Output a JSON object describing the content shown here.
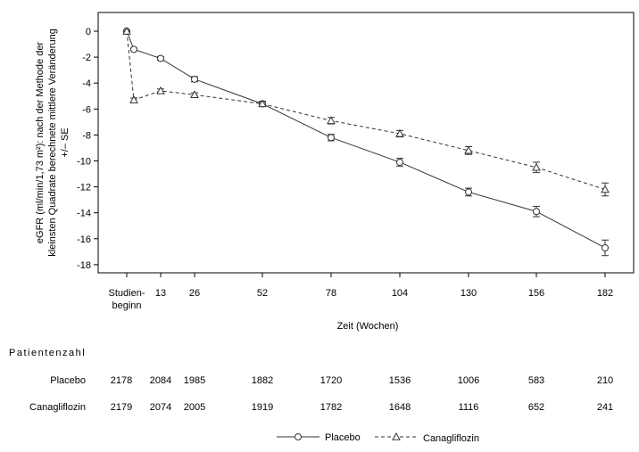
{
  "chart_data": {
    "type": "line",
    "ylabel_lines": [
      "eGFR (ml/min/1,73 m²): nach der Methode der",
      "kleinsten Quadrate berechnete mittlere Veränderung",
      "+/– SE"
    ],
    "xlabel": "Zeit (Wochen)",
    "ylim": [
      -18.5,
      1.5
    ],
    "yticks": [
      0,
      -2,
      -4,
      -6,
      -8,
      -10,
      -12,
      -14,
      -16,
      -18
    ],
    "xticks": [
      {
        "week": 0,
        "label_lines": [
          "Studien-",
          "beginn"
        ]
      },
      {
        "week": 13,
        "label_lines": [
          "13"
        ]
      },
      {
        "week": 26,
        "label_lines": [
          "26"
        ]
      },
      {
        "week": 52,
        "label_lines": [
          "52"
        ]
      },
      {
        "week": 78,
        "label_lines": [
          "78"
        ]
      },
      {
        "week": 104,
        "label_lines": [
          "104"
        ]
      },
      {
        "week": 130,
        "label_lines": [
          "130"
        ]
      },
      {
        "week": 156,
        "label_lines": [
          "156"
        ]
      },
      {
        "week": 182,
        "label_lines": [
          "182"
        ]
      }
    ],
    "series": [
      {
        "name": "Placebo",
        "marker": "circle",
        "line": "solid",
        "points": [
          {
            "x": 0,
            "y": 0.0,
            "se": 0.05
          },
          {
            "x": 3,
            "y": -1.4,
            "se": 0.1
          },
          {
            "x": 13,
            "y": -2.1,
            "se": 0.15
          },
          {
            "x": 26,
            "y": -3.7,
            "se": 0.2
          },
          {
            "x": 52,
            "y": -5.6,
            "se": 0.2
          },
          {
            "x": 78,
            "y": -8.2,
            "se": 0.25
          },
          {
            "x": 104,
            "y": -10.1,
            "se": 0.3
          },
          {
            "x": 130,
            "y": -12.4,
            "se": 0.3
          },
          {
            "x": 156,
            "y": -13.9,
            "se": 0.4
          },
          {
            "x": 182,
            "y": -16.7,
            "se": 0.6
          }
        ]
      },
      {
        "name": "Canagliflozin",
        "marker": "triangle",
        "line": "dashed",
        "points": [
          {
            "x": 0,
            "y": 0.0,
            "se": 0.05
          },
          {
            "x": 3,
            "y": -5.3,
            "se": 0.15
          },
          {
            "x": 13,
            "y": -4.6,
            "se": 0.15
          },
          {
            "x": 26,
            "y": -4.9,
            "se": 0.15
          },
          {
            "x": 52,
            "y": -5.6,
            "se": 0.2
          },
          {
            "x": 78,
            "y": -6.9,
            "se": 0.25
          },
          {
            "x": 104,
            "y": -7.9,
            "se": 0.25
          },
          {
            "x": 130,
            "y": -9.2,
            "se": 0.3
          },
          {
            "x": 156,
            "y": -10.5,
            "se": 0.4
          },
          {
            "x": 182,
            "y": -12.2,
            "se": 0.5
          }
        ]
      }
    ],
    "legend_position": "bottom"
  },
  "patient_counts": {
    "title": "Patientenzahl",
    "rows": [
      {
        "label": "Placebo",
        "counts": [
          "2178",
          "2084",
          "1985",
          "1882",
          "1720",
          "1536",
          "1006",
          "583",
          "210"
        ]
      },
      {
        "label": "Canagliflozin",
        "counts": [
          "2179",
          "2074",
          "2005",
          "1919",
          "1782",
          "1648",
          "1116",
          "652",
          "241"
        ]
      }
    ]
  },
  "legend": {
    "items": [
      {
        "label": "Placebo"
      },
      {
        "label": "Canagliflozin"
      }
    ]
  }
}
